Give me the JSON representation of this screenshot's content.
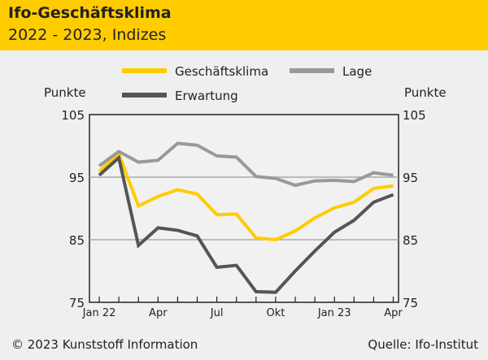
{
  "header": {
    "title": "Ifo-Geschäftsklima",
    "subtitle": "2022 - 2023, Indizes"
  },
  "footer": {
    "copyright": "© 2023 Kunststoff Information",
    "source": "Quelle: Ifo-Institut"
  },
  "chart_data": {
    "type": "line",
    "title": "Ifo-Geschäftsklima",
    "subtitle": "2022 - 2023, Indizes",
    "ylabel_left": "Punkte",
    "ylabel_right": "Punkte",
    "ylim": [
      75,
      105
    ],
    "yticks": [
      75,
      85,
      95,
      105
    ],
    "gridlines": [
      85,
      95
    ],
    "x": [
      "Jan 22",
      "Feb 22",
      "Mär 22",
      "Apr 22",
      "Mai 22",
      "Jun 22",
      "Jul 22",
      "Aug 22",
      "Sep 22",
      "Okt 22",
      "Nov 22",
      "Dez 22",
      "Jan 23",
      "Feb 23",
      "Mär 23",
      "Apr 23"
    ],
    "xtick_labels": [
      {
        "index": 0,
        "label": "Jan 22"
      },
      {
        "index": 3,
        "label": "Apr"
      },
      {
        "index": 6,
        "label": "Jul"
      },
      {
        "index": 9,
        "label": "Okt"
      },
      {
        "index": 12,
        "label": "Jan 23"
      },
      {
        "index": 15,
        "label": "Apr"
      }
    ],
    "legend_placement": "top",
    "series": [
      {
        "name": "Geschäftsklima",
        "color": "#ffcc00",
        "values": [
          95.9,
          98.7,
          90.4,
          91.9,
          93.0,
          92.3,
          89.0,
          89.1,
          85.3,
          85.0,
          86.4,
          88.5,
          90.1,
          91.0,
          93.2,
          93.6
        ]
      },
      {
        "name": "Lage",
        "color": "#999999",
        "values": [
          96.8,
          99.1,
          97.4,
          97.7,
          100.4,
          100.1,
          98.4,
          98.2,
          95.1,
          94.8,
          93.7,
          94.4,
          94.5,
          94.3,
          95.7,
          95.3
        ]
      },
      {
        "name": "Erwartung",
        "color": "#555555",
        "values": [
          95.3,
          98.1,
          84.1,
          86.9,
          86.5,
          85.6,
          80.6,
          80.9,
          76.7,
          76.6,
          80.0,
          83.2,
          86.2,
          88.1,
          91.0,
          92.2
        ]
      }
    ]
  }
}
